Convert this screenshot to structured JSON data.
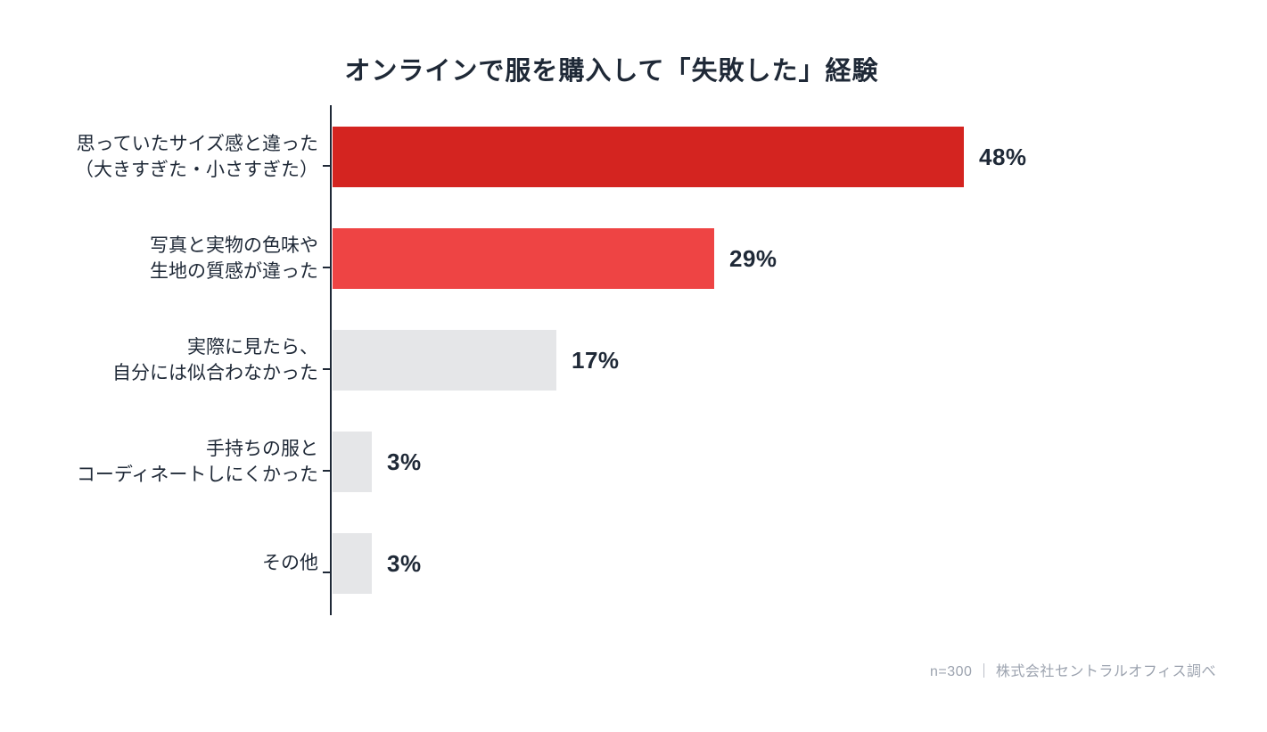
{
  "page": {
    "title": "オンラインで服を購入して「失敗した」経験",
    "footer": "n=300 ｜ 株式会社セントラルオフィス調べ"
  },
  "chart_data": {
    "type": "bar",
    "orientation": "horizontal",
    "title": "オンラインで服を購入して「失敗した」経験",
    "categories": [
      "思っていたサイズ感と違った\n（大きすぎた・小さすぎた）",
      "写真と実物の色味や\n生地の質感が違った",
      "実際に見たら、\n自分には似合わなかった",
      "手持ちの服と\nコーディネートしにくかった",
      "その他"
    ],
    "values": [
      48,
      29,
      17,
      3,
      3
    ],
    "value_labels": [
      "48%",
      "29%",
      "17%",
      "3%",
      "3%"
    ],
    "unit": "%",
    "xlim": [
      0,
      48
    ],
    "bar_colors": [
      "#D42420",
      "#EE4444",
      "#E5E6E8",
      "#E5E6E8",
      "#E5E6E8"
    ],
    "axis_color": "#1F2937",
    "text_color": "#1F2937",
    "source_color": "#9CA3AF",
    "grid": false,
    "legend": false,
    "source": "n=300 ｜ 株式会社セントラルオフィス調べ"
  }
}
